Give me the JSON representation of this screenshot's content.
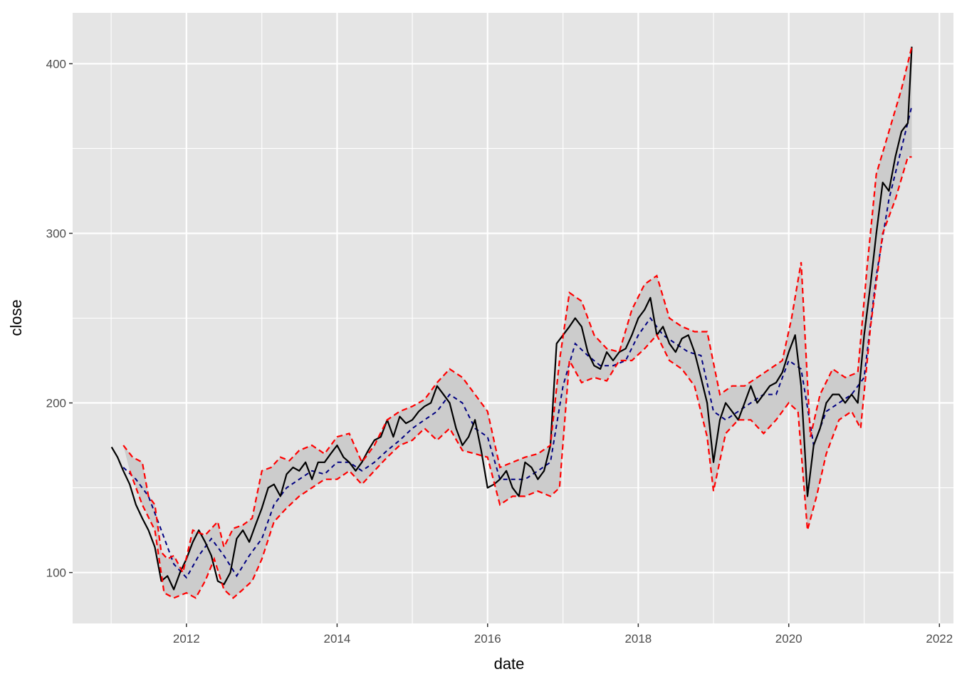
{
  "chart_data": {
    "type": "line",
    "title": "",
    "xlabel": "date",
    "ylabel": "close",
    "xlim": [
      "2010-06-28",
      "2022-03-10"
    ],
    "ylim": [
      70,
      430
    ],
    "x_ticks": [
      "2012",
      "2014",
      "2016",
      "2018",
      "2020",
      "2022"
    ],
    "y_ticks": [
      100,
      200,
      300,
      400
    ],
    "grid": true,
    "legend": "none",
    "band": {
      "fill": "#cccccc",
      "upper_color": "#ff0000",
      "lower_color": "#ff0000",
      "style": "dashed"
    },
    "series": [
      {
        "role": "close",
        "color": "#000000",
        "style": "solid",
        "x": [
          "2011-01-03",
          "2011-02-01",
          "2011-03-01",
          "2011-04-01",
          "2011-05-01",
          "2011-06-01",
          "2011-07-01",
          "2011-08-01",
          "2011-09-01",
          "2011-10-01",
          "2011-11-01",
          "2011-12-01",
          "2012-01-01",
          "2012-02-01",
          "2012-03-01",
          "2012-04-01",
          "2012-05-01",
          "2012-06-01",
          "2012-07-01",
          "2012-08-01",
          "2012-09-01",
          "2012-10-01",
          "2012-11-01",
          "2012-12-01",
          "2013-01-01",
          "2013-02-01",
          "2013-03-01",
          "2013-04-01",
          "2013-05-01",
          "2013-06-01",
          "2013-07-01",
          "2013-08-01",
          "2013-09-01",
          "2013-10-01",
          "2013-11-01",
          "2013-12-01",
          "2014-01-01",
          "2014-02-01",
          "2014-03-01",
          "2014-04-01",
          "2014-05-01",
          "2014-06-01",
          "2014-07-01",
          "2014-08-01",
          "2014-09-01",
          "2014-10-01",
          "2014-11-01",
          "2014-12-01",
          "2015-01-01",
          "2015-02-01",
          "2015-03-01",
          "2015-04-01",
          "2015-05-01",
          "2015-06-01",
          "2015-07-01",
          "2015-08-01",
          "2015-09-01",
          "2015-10-01",
          "2015-11-01",
          "2015-12-01",
          "2016-01-01",
          "2016-02-01",
          "2016-03-01",
          "2016-04-01",
          "2016-05-01",
          "2016-06-01",
          "2016-07-01",
          "2016-08-01",
          "2016-09-01",
          "2016-10-01",
          "2016-11-01",
          "2016-12-01",
          "2017-01-01",
          "2017-02-01",
          "2017-03-01",
          "2017-04-01",
          "2017-05-01",
          "2017-06-01",
          "2017-07-01",
          "2017-08-01",
          "2017-09-01",
          "2017-10-01",
          "2017-11-01",
          "2017-12-01",
          "2018-01-01",
          "2018-02-01",
          "2018-03-01",
          "2018-04-01",
          "2018-05-01",
          "2018-06-01",
          "2018-07-01",
          "2018-08-01",
          "2018-09-01",
          "2018-10-01",
          "2018-11-01",
          "2018-12-01",
          "2019-01-01",
          "2019-02-01",
          "2019-03-01",
          "2019-04-01",
          "2019-05-01",
          "2019-06-01",
          "2019-07-01",
          "2019-08-01",
          "2019-09-01",
          "2019-10-01",
          "2019-11-01",
          "2019-12-01",
          "2020-01-01",
          "2020-02-01",
          "2020-03-01",
          "2020-04-01",
          "2020-05-01",
          "2020-06-01",
          "2020-07-01",
          "2020-08-01",
          "2020-09-01",
          "2020-10-01",
          "2020-11-01",
          "2020-12-01",
          "2021-01-01",
          "2021-02-01",
          "2021-03-01",
          "2021-04-01",
          "2021-05-01",
          "2021-06-01",
          "2021-07-01",
          "2021-08-01",
          "2021-08-20"
        ],
        "values": [
          174,
          168,
          160,
          152,
          140,
          132,
          125,
          115,
          95,
          98,
          90,
          100,
          108,
          118,
          125,
          118,
          110,
          95,
          93,
          100,
          120,
          125,
          118,
          128,
          138,
          150,
          152,
          145,
          158,
          162,
          160,
          165,
          155,
          165,
          165,
          170,
          175,
          168,
          165,
          160,
          165,
          172,
          178,
          180,
          190,
          180,
          192,
          188,
          190,
          195,
          198,
          200,
          210,
          205,
          200,
          185,
          175,
          180,
          190,
          172,
          150,
          152,
          155,
          160,
          150,
          145,
          165,
          162,
          155,
          160,
          175,
          235,
          240,
          245,
          250,
          245,
          230,
          222,
          220,
          230,
          225,
          230,
          232,
          240,
          250,
          255,
          262,
          240,
          245,
          235,
          230,
          238,
          240,
          230,
          215,
          200,
          165,
          190,
          200,
          195,
          190,
          200,
          210,
          200,
          205,
          210,
          212,
          218,
          230,
          240,
          210,
          145,
          175,
          185,
          200,
          205,
          205,
          200,
          205,
          200,
          240,
          270,
          300,
          330,
          325,
          345,
          360,
          365,
          410
        ]
      },
      {
        "role": "moving-average",
        "color": "#000080",
        "style": "dashed",
        "x": [
          "2011-03-01",
          "2011-05-01",
          "2011-07-01",
          "2011-09-01",
          "2011-11-01",
          "2012-01-01",
          "2012-03-01",
          "2012-05-01",
          "2012-07-01",
          "2012-09-01",
          "2012-11-01",
          "2013-01-01",
          "2013-03-01",
          "2013-05-01",
          "2013-07-01",
          "2013-09-01",
          "2013-11-01",
          "2014-01-01",
          "2014-03-01",
          "2014-05-01",
          "2014-07-01",
          "2014-09-01",
          "2014-11-01",
          "2015-01-01",
          "2015-03-01",
          "2015-05-01",
          "2015-07-01",
          "2015-09-01",
          "2015-11-01",
          "2016-01-01",
          "2016-03-01",
          "2016-05-01",
          "2016-07-01",
          "2016-09-01",
          "2016-11-01",
          "2017-01-01",
          "2017-03-01",
          "2017-05-01",
          "2017-07-01",
          "2017-09-01",
          "2017-11-01",
          "2018-01-01",
          "2018-03-01",
          "2018-05-01",
          "2018-07-01",
          "2018-09-01",
          "2018-11-01",
          "2019-01-01",
          "2019-03-01",
          "2019-05-01",
          "2019-07-01",
          "2019-09-01",
          "2019-11-01",
          "2020-01-01",
          "2020-03-01",
          "2020-05-01",
          "2020-07-01",
          "2020-09-01",
          "2020-11-01",
          "2021-01-01",
          "2021-03-01",
          "2021-05-01",
          "2021-07-01",
          "2021-08-20"
        ],
        "values": [
          162,
          155,
          145,
          125,
          105,
          97,
          110,
          120,
          110,
          98,
          110,
          120,
          140,
          150,
          155,
          160,
          158,
          165,
          165,
          160,
          165,
          172,
          178,
          185,
          190,
          195,
          205,
          200,
          185,
          180,
          155,
          155,
          155,
          160,
          165,
          210,
          235,
          228,
          222,
          222,
          225,
          240,
          250,
          240,
          235,
          230,
          228,
          195,
          190,
          195,
          200,
          205,
          205,
          225,
          220,
          175,
          195,
          200,
          205,
          215,
          275,
          320,
          350,
          375
        ]
      }
    ],
    "upper": {
      "x": [
        "2011-03-01",
        "2011-04-15",
        "2011-06-01",
        "2011-07-01",
        "2011-08-01",
        "2011-09-01",
        "2011-10-01",
        "2011-11-01",
        "2011-12-15",
        "2012-02-01",
        "2012-04-01",
        "2012-06-01",
        "2012-07-01",
        "2012-08-15",
        "2012-10-01",
        "2012-11-15",
        "2013-01-01",
        "2013-02-15",
        "2013-04-01",
        "2013-05-15",
        "2013-07-01",
        "2013-09-01",
        "2013-11-01",
        "2014-01-01",
        "2014-03-01",
        "2014-05-01",
        "2014-07-01",
        "2014-09-01",
        "2014-11-01",
        "2015-01-01",
        "2015-03-01",
        "2015-05-01",
        "2015-07-01",
        "2015-09-01",
        "2015-11-01",
        "2016-01-01",
        "2016-03-01",
        "2016-05-01",
        "2016-07-01",
        "2016-09-01",
        "2016-11-01",
        "2016-12-15",
        "2017-02-01",
        "2017-04-01",
        "2017-06-01",
        "2017-08-01",
        "2017-10-01",
        "2017-12-01",
        "2018-02-01",
        "2018-04-01",
        "2018-06-01",
        "2018-08-01",
        "2018-10-01",
        "2018-12-01",
        "2019-02-01",
        "2019-04-01",
        "2019-06-01",
        "2019-08-01",
        "2019-10-01",
        "2019-12-01",
        "2020-01-15",
        "2020-03-01",
        "2020-04-15",
        "2020-06-01",
        "2020-08-01",
        "2020-10-01",
        "2020-12-01",
        "2021-01-15",
        "2021-03-01",
        "2021-05-01",
        "2021-07-01",
        "2021-08-20"
      ],
      "values": [
        175,
        168,
        165,
        145,
        140,
        112,
        108,
        110,
        100,
        125,
        122,
        130,
        115,
        126,
        128,
        132,
        160,
        162,
        168,
        166,
        172,
        175,
        170,
        180,
        182,
        165,
        175,
        190,
        195,
        198,
        202,
        212,
        220,
        215,
        205,
        195,
        162,
        165,
        168,
        170,
        175,
        225,
        265,
        260,
        240,
        232,
        230,
        255,
        270,
        275,
        250,
        245,
        242,
        242,
        205,
        210,
        210,
        215,
        220,
        225,
        250,
        283,
        180,
        205,
        220,
        215,
        218,
        280,
        335,
        360,
        385,
        410
      ]
    },
    "lower": {
      "x": [
        "2011-04-01",
        "2011-06-01",
        "2011-08-01",
        "2011-09-15",
        "2011-11-01",
        "2012-01-01",
        "2012-02-15",
        "2012-04-01",
        "2012-05-15",
        "2012-07-01",
        "2012-08-15",
        "2012-10-01",
        "2012-11-15",
        "2013-01-01",
        "2013-03-01",
        "2013-05-01",
        "2013-07-01",
        "2013-09-01",
        "2013-11-01",
        "2014-01-01",
        "2014-03-01",
        "2014-05-01",
        "2014-07-01",
        "2014-09-01",
        "2014-11-01",
        "2015-01-01",
        "2015-03-01",
        "2015-05-01",
        "2015-07-01",
        "2015-09-01",
        "2015-11-01",
        "2016-01-01",
        "2016-03-01",
        "2016-05-01",
        "2016-07-01",
        "2016-09-01",
        "2016-11-01",
        "2016-12-15",
        "2017-02-01",
        "2017-04-01",
        "2017-06-01",
        "2017-08-01",
        "2017-10-01",
        "2017-12-01",
        "2018-02-01",
        "2018-04-01",
        "2018-06-01",
        "2018-08-01",
        "2018-10-01",
        "2018-12-01",
        "2019-01-01",
        "2019-03-01",
        "2019-05-01",
        "2019-07-01",
        "2019-09-01",
        "2019-11-01",
        "2020-01-01",
        "2020-02-15",
        "2020-04-01",
        "2020-05-15",
        "2020-07-01",
        "2020-09-01",
        "2020-11-01",
        "2020-12-15",
        "2021-02-01",
        "2021-04-01",
        "2021-06-01",
        "2021-08-01",
        "2021-08-20"
      ],
      "values": [
        160,
        140,
        125,
        88,
        85,
        88,
        85,
        95,
        108,
        90,
        85,
        90,
        95,
        108,
        130,
        138,
        145,
        150,
        155,
        155,
        160,
        152,
        160,
        168,
        175,
        178,
        185,
        178,
        185,
        172,
        170,
        168,
        140,
        145,
        145,
        148,
        145,
        150,
        225,
        212,
        215,
        213,
        225,
        225,
        232,
        240,
        225,
        220,
        210,
        180,
        148,
        182,
        190,
        190,
        182,
        190,
        200,
        195,
        125,
        145,
        170,
        190,
        195,
        185,
        245,
        300,
        320,
        345,
        345
      ]
    }
  }
}
